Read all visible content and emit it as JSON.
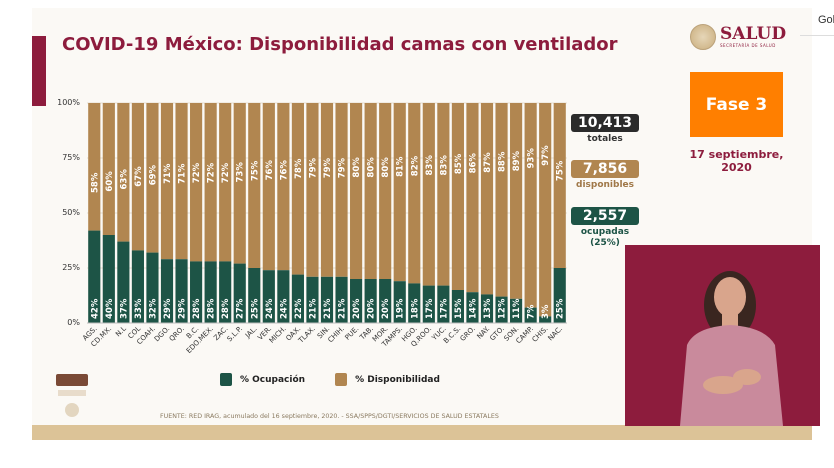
{
  "title": "COVID-19 México: Disponibilidad camas con ventilador",
  "browser_corner_text": "Gol",
  "logo": {
    "name": "SALUD",
    "subtitle": "SECRETARÍA DE SALUD"
  },
  "phase": "Fase 3",
  "date": "17 septiembre, 2020",
  "stats": {
    "total": {
      "value": "10,413",
      "label": "totales"
    },
    "available": {
      "value": "7,856",
      "label": "disponibles"
    },
    "occupied": {
      "value": "2,557",
      "label": "ocupadas (25%)"
    }
  },
  "source": "FUENTE: RED IRAG, acumulado del 16 septiembre, 2020. -  SSA/SPPS/DGTI/SERVICIOS DE SALUD ESTATALES",
  "colors": {
    "occupancy": "#1d5446",
    "availability": "#b18650",
    "accent": "#8d1c3d",
    "phase": "#ff7f00"
  },
  "chart_data": {
    "type": "bar",
    "stacked": true,
    "ylim": [
      0,
      100
    ],
    "yticks": [
      "0%",
      "25%",
      "50%",
      "75%",
      "100%"
    ],
    "legend_position": "bottom",
    "categories": [
      "AGS.",
      "CD.MX.",
      "N.L",
      "COL",
      "COAH.",
      "DGO.",
      "QRO.",
      "B.C.",
      "EDO.MEX.",
      "ZAC.",
      "S.L.P.",
      "JAL.",
      "VER.",
      "MICH.",
      "OAX.",
      "TLAX.",
      "SIN.",
      "CHIH.",
      "PUE.",
      "TAB.",
      "MOR.",
      "TAMPS.",
      "HGO.",
      "Q.ROO.",
      "YUC.",
      "B.C.S.",
      "GRO.",
      "NAY.",
      "GTO.",
      "SON.",
      "CAMP.",
      "CHIS.",
      "NAC."
    ],
    "series": [
      {
        "name": "% Ocupación",
        "values": [
          42,
          40,
          37,
          33,
          32,
          29,
          29,
          28,
          28,
          28,
          27,
          25,
          24,
          24,
          22,
          21,
          21,
          21,
          20,
          20,
          20,
          19,
          18,
          17,
          17,
          15,
          14,
          13,
          12,
          11,
          7,
          3,
          25
        ]
      },
      {
        "name": "% Disponibilidad",
        "values": [
          58,
          60,
          63,
          67,
          69,
          71,
          71,
          72,
          72,
          72,
          73,
          75,
          76,
          76,
          78,
          79,
          79,
          79,
          80,
          80,
          80,
          81,
          82,
          83,
          83,
          85,
          86,
          87,
          88,
          89,
          93,
          97,
          75
        ]
      }
    ]
  }
}
